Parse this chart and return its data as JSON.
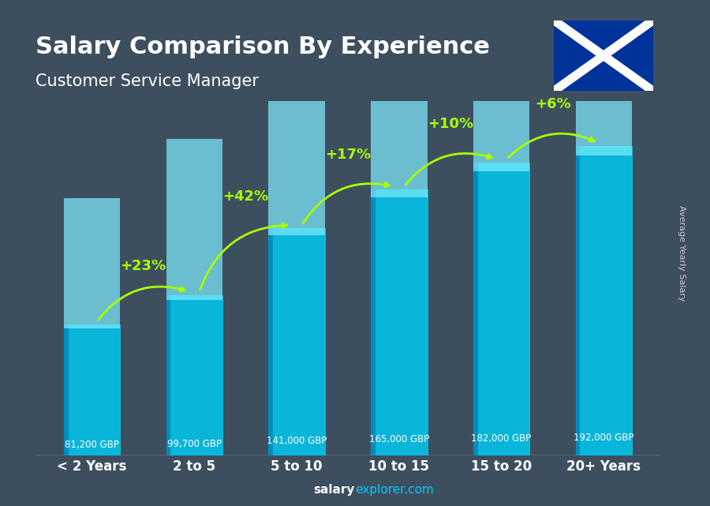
{
  "title": "Salary Comparison By Experience",
  "subtitle": "Customer Service Manager",
  "categories": [
    "< 2 Years",
    "2 to 5",
    "5 to 10",
    "10 to 15",
    "15 to 20",
    "20+ Years"
  ],
  "values": [
    81200,
    99700,
    141000,
    165000,
    182000,
    192000
  ],
  "value_labels": [
    "81,200 GBP",
    "99,700 GBP",
    "141,000 GBP",
    "165,000 GBP",
    "182,000 GBP",
    "192,000 GBP"
  ],
  "pct_changes": [
    null,
    "+23%",
    "+42%",
    "+17%",
    "+10%",
    "+6%"
  ],
  "bar_color_top": "#00d4ff",
  "bar_color_mid": "#00aadd",
  "bar_color_bottom": "#007bbb",
  "background_color": "#1a1a2e",
  "title_color": "#ffffff",
  "subtitle_color": "#ffffff",
  "value_label_color": "#ffffff",
  "pct_color": "#aaff00",
  "xlabel_color": "#ffffff",
  "ylabel_text": "Average Yearly Salary",
  "footer_text": "salary",
  "footer_text2": "explorer.com",
  "ylim_max": 220000,
  "bar_width": 0.55
}
